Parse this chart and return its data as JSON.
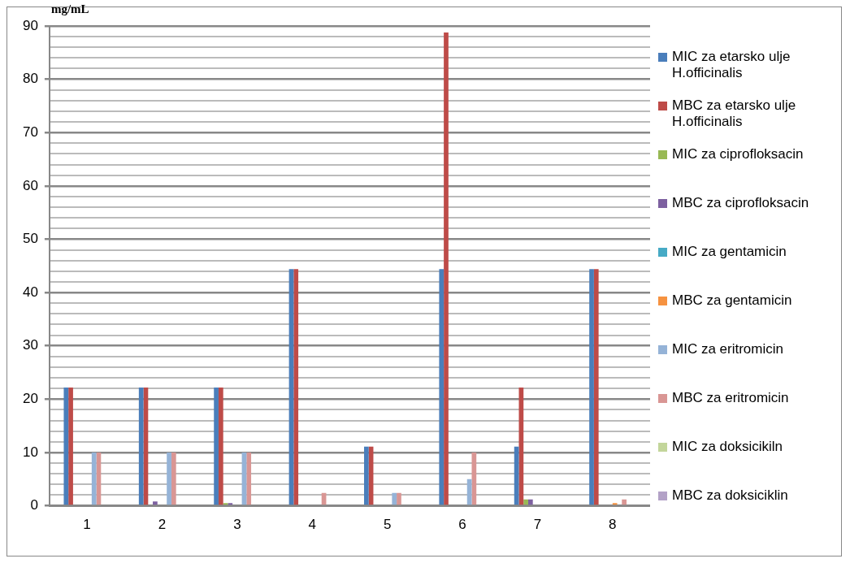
{
  "chart_data": {
    "type": "bar",
    "ylabel": "mg/mL",
    "categories": [
      "1",
      "2",
      "3",
      "4",
      "5",
      "6",
      "7",
      "8"
    ],
    "ylim": [
      0,
      90
    ],
    "yticks": [
      0,
      {
        "value": 2,
        "label": null
      },
      {
        "value": 4,
        "label": null
      },
      {
        "value": 6,
        "label": null
      },
      {
        "value": 8,
        "label": null
      },
      10,
      {
        "value": 12,
        "label": null
      },
      {
        "value": 14,
        "label": null
      },
      {
        "value": 16,
        "label": null
      },
      {
        "value": 18,
        "label": null
      },
      20,
      {
        "value": 22,
        "label": null
      },
      {
        "value": 24,
        "label": null
      },
      {
        "value": 26,
        "label": null
      },
      {
        "value": 28,
        "label": null
      },
      30,
      {
        "value": 32,
        "label": null
      },
      {
        "value": 34,
        "label": null
      },
      {
        "value": 36,
        "label": null
      },
      {
        "value": 38,
        "label": null
      },
      40,
      {
        "value": 42,
        "label": null
      },
      {
        "value": 44,
        "label": null
      },
      {
        "value": 46,
        "label": null
      },
      {
        "value": 48,
        "label": null
      },
      50,
      {
        "value": 52,
        "label": null
      },
      {
        "value": 54,
        "label": null
      },
      {
        "value": 56,
        "label": null
      },
      {
        "value": 58,
        "label": null
      },
      60,
      {
        "value": 62,
        "label": null
      },
      {
        "value": 64,
        "label": null
      },
      {
        "value": 66,
        "label": null
      },
      {
        "value": 68,
        "label": null
      },
      70,
      {
        "value": 72,
        "label": null
      },
      {
        "value": 74,
        "label": null
      },
      {
        "value": 76,
        "label": null
      },
      {
        "value": 78,
        "label": null
      },
      80,
      {
        "value": 82,
        "label": null
      },
      {
        "value": 84,
        "label": null
      },
      {
        "value": 86,
        "label": null
      },
      {
        "value": 88,
        "label": null
      },
      90
    ],
    "grid": "y",
    "legend": "right",
    "series": [
      {
        "name": "MIC za etarsko ulje H.officinalis",
        "color": "#4a7ebb",
        "values": [
          22.2,
          22.2,
          22.2,
          44.4,
          11.1,
          44.4,
          11.1,
          44.4
        ]
      },
      {
        "name": "MBC za etarsko ulje H.officinalis",
        "color": "#be4b48",
        "values": [
          22.2,
          22.2,
          22.2,
          44.4,
          11.1,
          88.8,
          22.2,
          44.4
        ]
      },
      {
        "name": "MIC za ciprofloksacin",
        "color": "#98b954",
        "values": [
          null,
          null,
          0.5,
          null,
          null,
          null,
          1.2,
          null
        ]
      },
      {
        "name": "MBC za ciprofloksacin",
        "color": "#7d60a0",
        "values": [
          null,
          0.8,
          0.5,
          null,
          null,
          null,
          1.2,
          null
        ]
      },
      {
        "name": "MIC za gentamicin",
        "color": "#46aac5",
        "values": [
          null,
          null,
          null,
          null,
          null,
          null,
          null,
          null
        ]
      },
      {
        "name": "MBC za gentamicin",
        "color": "#f69240",
        "values": [
          null,
          null,
          null,
          null,
          null,
          null,
          null,
          0.5
        ]
      },
      {
        "name": "MIC za eritromicin",
        "color": "#95b3d7",
        "values": [
          10,
          10,
          10,
          null,
          2.4,
          5,
          null,
          null
        ]
      },
      {
        "name": "MBC za eritromicin",
        "color": "#d99694",
        "values": [
          10,
          10,
          10,
          2.4,
          2.4,
          10,
          null,
          1.2
        ]
      },
      {
        "name": "MIC za doksicikiln",
        "color": "#c3d69b",
        "values": [
          null,
          null,
          null,
          null,
          null,
          null,
          null,
          null
        ]
      },
      {
        "name": "MBC za doksiciklin",
        "color": "#b3a2c7",
        "values": [
          null,
          null,
          null,
          null,
          null,
          null,
          null,
          null
        ]
      }
    ]
  }
}
